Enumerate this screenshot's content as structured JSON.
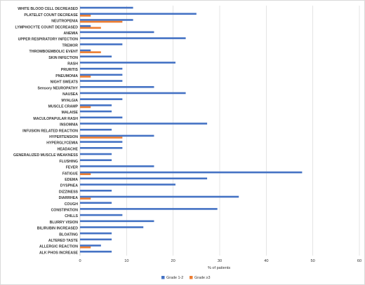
{
  "chart_data": {
    "type": "bar",
    "orientation": "horizontal",
    "title": "",
    "xlabel": "% of patients",
    "ylabel": "",
    "xlim": [
      0,
      60
    ],
    "xticks": [
      0,
      10,
      20,
      30,
      40,
      50,
      60
    ],
    "grid": "vertical",
    "legend_position": "bottom",
    "colors": {
      "Grade 1-2": "#4472c4",
      "Grade ≥3": "#ed7d31"
    },
    "categories": [
      "WHITE BLOOD CELL DECREASED",
      "PLATELET COUNT DECREASE",
      "NEUTROPENIA",
      "LYMPHOCYTE COUNT DECREASED",
      "ANEMIA",
      "UPPER RESPIRATORY INFECTION",
      "TREMOR",
      "THROMBOEMBOLIC EVENT",
      "SKIN INFECTION",
      "RASH",
      "PRURITIS",
      "PNEUMONIA",
      "NIGHT SWEATS",
      "Sensory NEUROPATHY",
      "NAUSEA",
      "MYALGIA",
      "MUSCLE CRAMP",
      "MALAISE",
      "MACULOPAPULAR RASH",
      "INSOMNIA",
      "INFUSION RELATED REACTION",
      "HYPERTENSION",
      "HYPERGLYCEMIA",
      "HEADACHE",
      "GENERALIZED MUSCLE WEAKNESS",
      "FLUSHING",
      "FEVER",
      "FATIGUE",
      "EDEMA",
      "DYSPNEA",
      "DIZZINESS",
      "DIARRHEA",
      "COUGH",
      "CONSTIPATION",
      "CHILLS",
      "BLURRY VISION",
      "BILIRUBIN INCREASED",
      "BLOATING",
      "ALTERED TASTE",
      "ALLERGIC REACTION",
      "ALK PHOS INCREASE"
    ],
    "series": [
      {
        "name": "Grade 1-2",
        "values": [
          11.4,
          25.0,
          11.4,
          2.3,
          15.9,
          22.7,
          9.1,
          2.3,
          6.8,
          20.5,
          9.1,
          9.1,
          9.1,
          15.9,
          22.7,
          9.1,
          6.8,
          6.8,
          9.1,
          27.3,
          6.8,
          15.9,
          9.1,
          9.1,
          6.8,
          6.8,
          15.9,
          47.7,
          27.3,
          20.5,
          6.8,
          34.1,
          6.8,
          29.5,
          9.1,
          15.9,
          13.6,
          6.8,
          6.8,
          4.5,
          6.8
        ]
      },
      {
        "name": "Grade ≥3",
        "values": [
          0,
          2.3,
          9.1,
          4.5,
          0,
          0,
          0,
          4.5,
          0,
          0,
          0,
          2.3,
          0,
          0,
          0,
          0,
          2.3,
          0,
          0,
          0,
          0,
          9.1,
          0,
          0,
          0,
          0,
          0,
          2.3,
          0,
          0,
          0,
          2.3,
          0,
          0,
          0,
          0,
          0,
          0,
          0,
          2.3,
          0
        ]
      }
    ]
  }
}
